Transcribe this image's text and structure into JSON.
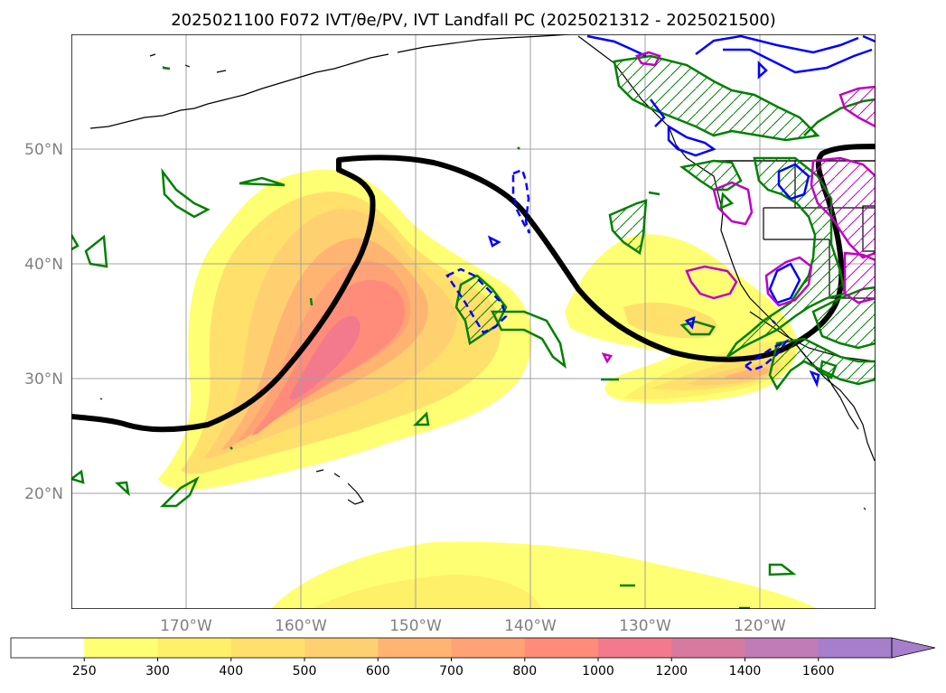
{
  "title": "2025021100 F072 IVT/θe/PV, IVT Landfall PC (2025021312 - 2025021500)",
  "map": {
    "lat_labels": [
      "50°N",
      "40°N",
      "30°N",
      "20°N"
    ],
    "lon_labels": [
      "170°W",
      "160°W",
      "150°W",
      "140°W",
      "130°W",
      "120°W"
    ],
    "gridlines": true,
    "label_color": "#808080"
  },
  "colorbar": {
    "ticks": [
      "250",
      "300",
      "400",
      "500",
      "600",
      "700",
      "800",
      "1000",
      "1200",
      "1400",
      "1600"
    ],
    "colors": [
      "#ffffff",
      "#ffff73",
      "#fff069",
      "#ffe06b",
      "#ffd070",
      "#ffb472",
      "#ffa276",
      "#ff8b7a",
      "#f27a8c",
      "#d87aa0",
      "#bf7cb6",
      "#a67ecc"
    ],
    "extend": "max"
  },
  "contours": {
    "black": "IVT landfall PC",
    "green": "#008000",
    "blue": "#0000ff",
    "magenta": "#c000c0"
  }
}
